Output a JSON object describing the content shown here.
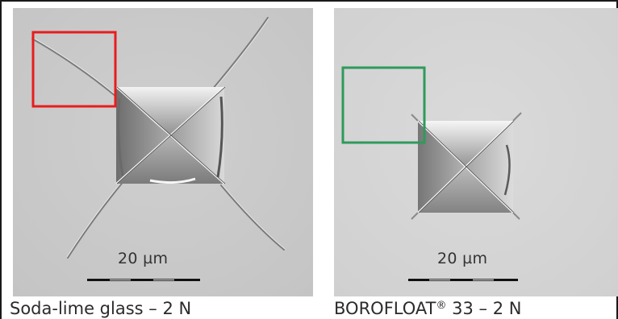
{
  "panels": {
    "left": {
      "caption_main": "Soda-lime glass – 2 N",
      "scale_bar_label": "20 µm",
      "highlight_box_color": "#e81d1d"
    },
    "right": {
      "caption_prefix": "BOROFLOAT",
      "caption_sup": "®",
      "caption_suffix": " 33 – 2 N",
      "scale_bar_label": "20 µm",
      "highlight_box_color": "#2e9a5b"
    }
  }
}
